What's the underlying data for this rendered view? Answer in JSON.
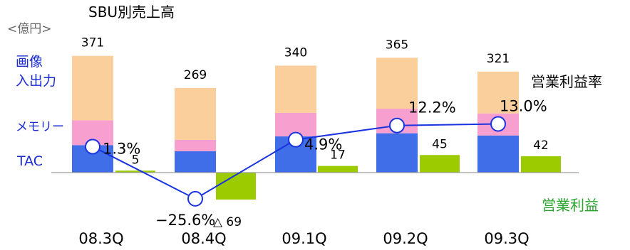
{
  "chart_data": {
    "type": "bar",
    "title": "SBU別売上高",
    "unit_label": "<億円>",
    "categories": [
      "08.3Q",
      "08.4Q",
      "09.1Q",
      "09.2Q",
      "09.3Q"
    ],
    "sales_total": [
      371,
      269,
      340,
      365,
      321
    ],
    "sales_stack": [
      {
        "name": "TAC",
        "values": [
          87,
          68,
          115,
          125,
          118
        ],
        "color": "#3f6ee8"
      },
      {
        "name": "メモリー",
        "values": [
          79,
          36,
          75,
          78,
          70
        ],
        "color": "#f79fcf"
      },
      {
        "name": "画像\n入出力",
        "values": [
          205,
          165,
          150,
          162,
          133
        ],
        "color": "#fbcf9c"
      }
    ],
    "operating_profit": {
      "name": "営業利益",
      "values": [
        5,
        -69,
        17,
        45,
        42
      ],
      "labels": [
        "5",
        "△ 69",
        "17",
        "45",
        "42"
      ],
      "color": "#9ccc00"
    },
    "operating_margin": {
      "name": "営業利益率",
      "values": [
        1.3,
        -25.6,
        4.9,
        12.2,
        13.0
      ],
      "labels": [
        "1.3%",
        "−25.6%",
        "4.9%",
        "12.2%",
        "13.0%"
      ],
      "color": "#1a33e0"
    },
    "legend_labels": {
      "image": [
        "画像",
        "入出力"
      ],
      "memory": "メモリー",
      "tac": "TAC"
    },
    "grid": false
  }
}
